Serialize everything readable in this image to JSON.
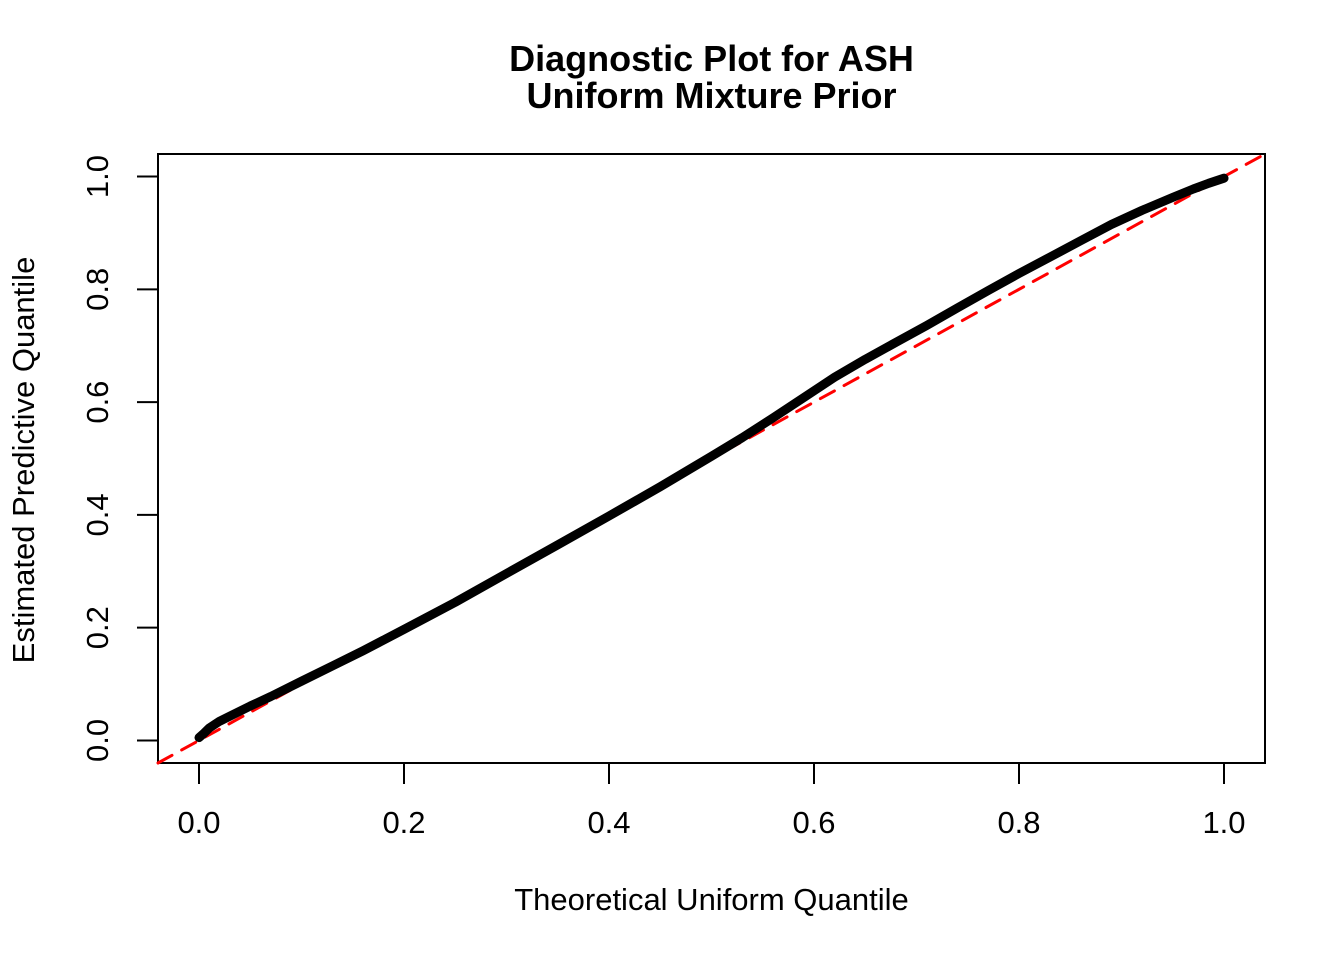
{
  "figure": {
    "title_line1": "Diagnostic Plot for ASH",
    "title_line2": "Uniform Mixture Prior"
  },
  "chart_data": {
    "type": "line",
    "title": "Diagnostic Plot for ASH\nUniform Mixture Prior",
    "xlabel": "Theoretical Uniform Quantile",
    "ylabel": "Estimated Predictive Quantile",
    "xlim": [
      -0.04,
      1.04
    ],
    "ylim": [
      -0.04,
      1.04
    ],
    "grid": false,
    "legend": false,
    "background": "#ffffff",
    "axis_color": "#000000",
    "xticks": {
      "values": [
        0,
        0.2,
        0.4,
        0.6,
        0.8,
        1.0
      ],
      "labels": [
        "0.0",
        "0.2",
        "0.4",
        "0.6",
        "0.8",
        "1.0"
      ]
    },
    "yticks": {
      "values": [
        0,
        0.2,
        0.4,
        0.6,
        0.8,
        1.0
      ],
      "labels": [
        "0.0",
        "0.2",
        "0.4",
        "0.6",
        "0.8",
        "1.0"
      ]
    },
    "series": [
      {
        "name": "estimated-vs-theoretical-quantiles",
        "type": "line",
        "color": "#000000",
        "line_width": 9,
        "dash": null,
        "x": [
          0.0,
          0.005,
          0.01,
          0.02,
          0.03,
          0.05,
          0.07,
          0.1,
          0.13,
          0.16,
          0.2,
          0.25,
          0.3,
          0.35,
          0.4,
          0.45,
          0.5,
          0.53,
          0.56,
          0.59,
          0.62,
          0.65,
          0.68,
          0.71,
          0.74,
          0.77,
          0.8,
          0.83,
          0.86,
          0.89,
          0.92,
          0.95,
          0.97,
          0.985,
          1.0
        ],
        "y": [
          0.005,
          0.013,
          0.022,
          0.034,
          0.043,
          0.061,
          0.078,
          0.105,
          0.132,
          0.159,
          0.197,
          0.245,
          0.296,
          0.347,
          0.398,
          0.45,
          0.504,
          0.537,
          0.572,
          0.608,
          0.644,
          0.676,
          0.706,
          0.736,
          0.767,
          0.798,
          0.828,
          0.857,
          0.886,
          0.915,
          0.94,
          0.963,
          0.978,
          0.988,
          0.997
        ]
      },
      {
        "name": "reference-identity-line",
        "type": "line",
        "color": "#FF0000",
        "line_width": 3,
        "dash": [
          16,
          11
        ],
        "x": [
          -0.04,
          1.04
        ],
        "y": [
          -0.04,
          1.04
        ]
      }
    ]
  }
}
